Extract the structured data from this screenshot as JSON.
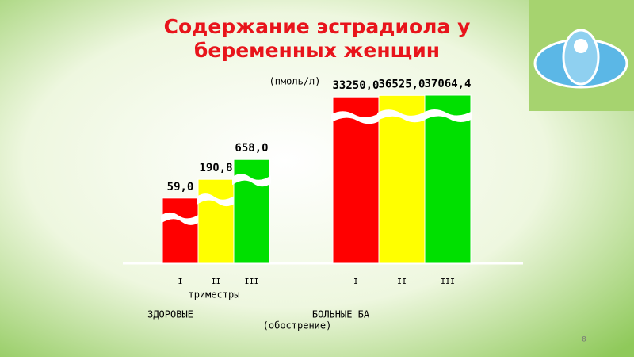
{
  "chart_data": {
    "type": "bar",
    "title": "Содержание эстрадиола у",
    "title_line2": "беременных женщин",
    "unit": "(пмоль/л)",
    "log_scale": true,
    "categories": [
      "ЗДОРОВЫЕ",
      "БОЛЬНЫЕ БА"
    ],
    "category_note": "(обострение)",
    "x_label": "триместры",
    "series": [
      {
        "name": "I",
        "color": "#ff0000",
        "values": [
          59.0,
          33250.0
        ],
        "value_labels": [
          "59,0",
          "33250,0"
        ]
      },
      {
        "name": "II",
        "color": "#ffff00",
        "values": [
          190.8,
          36525.0
        ],
        "value_labels": [
          "190,8",
          "36525,0"
        ]
      },
      {
        "name": "III",
        "color": "#00e000",
        "values": [
          658.0,
          37064.4
        ],
        "value_labels": [
          "658,0",
          "37064,4"
        ]
      }
    ]
  },
  "page_number": "8"
}
